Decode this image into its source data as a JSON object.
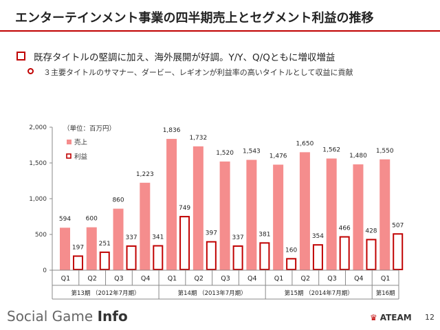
{
  "slide": {
    "title": "エンターテインメント事業の四半期売上とセグメント利益の推移",
    "bullet_main": "既存タイトルの堅調に加え、海外展開が好調。Y/Y、Q/Qともに増収増益",
    "bullet_sub": "３主要タイトルのサマナー、ダービー、レギオンが利益率の高いタイトルとして収益に貢献",
    "page_number": "12"
  },
  "footer": {
    "brand_part1": "Social Game ",
    "brand_part2": "Info",
    "logo_text": "ATEAM"
  },
  "colors": {
    "sales": "#f58d8d",
    "profit_border": "#c00000",
    "accent": "#c00000"
  },
  "chart_data": {
    "type": "bar",
    "unit_label": "（単位：百万円）",
    "categories": [
      "Q1",
      "Q2",
      "Q3",
      "Q4",
      "Q1",
      "Q2",
      "Q3",
      "Q4",
      "Q1",
      "Q2",
      "Q3",
      "Q4",
      "Q1"
    ],
    "periods": [
      {
        "label": "第13期 （2012年7月期）",
        "count": 4
      },
      {
        "label": "第14期 （2013年7月期）",
        "count": 4
      },
      {
        "label": "第15期 （2014年7月期）",
        "count": 4
      },
      {
        "label": "第16期",
        "count": 1
      }
    ],
    "series": [
      {
        "name": "売上",
        "values": [
          594,
          600,
          860,
          1223,
          1836,
          1732,
          1520,
          1543,
          1476,
          1650,
          1562,
          1480,
          1550
        ]
      },
      {
        "name": "利益",
        "values": [
          197,
          251,
          337,
          341,
          749,
          397,
          337,
          381,
          160,
          354,
          466,
          428,
          507
        ]
      }
    ],
    "yticks": [
      "0",
      "500",
      "1,000",
      "1,500",
      "2,000"
    ],
    "ylim": [
      0,
      2000
    ]
  }
}
